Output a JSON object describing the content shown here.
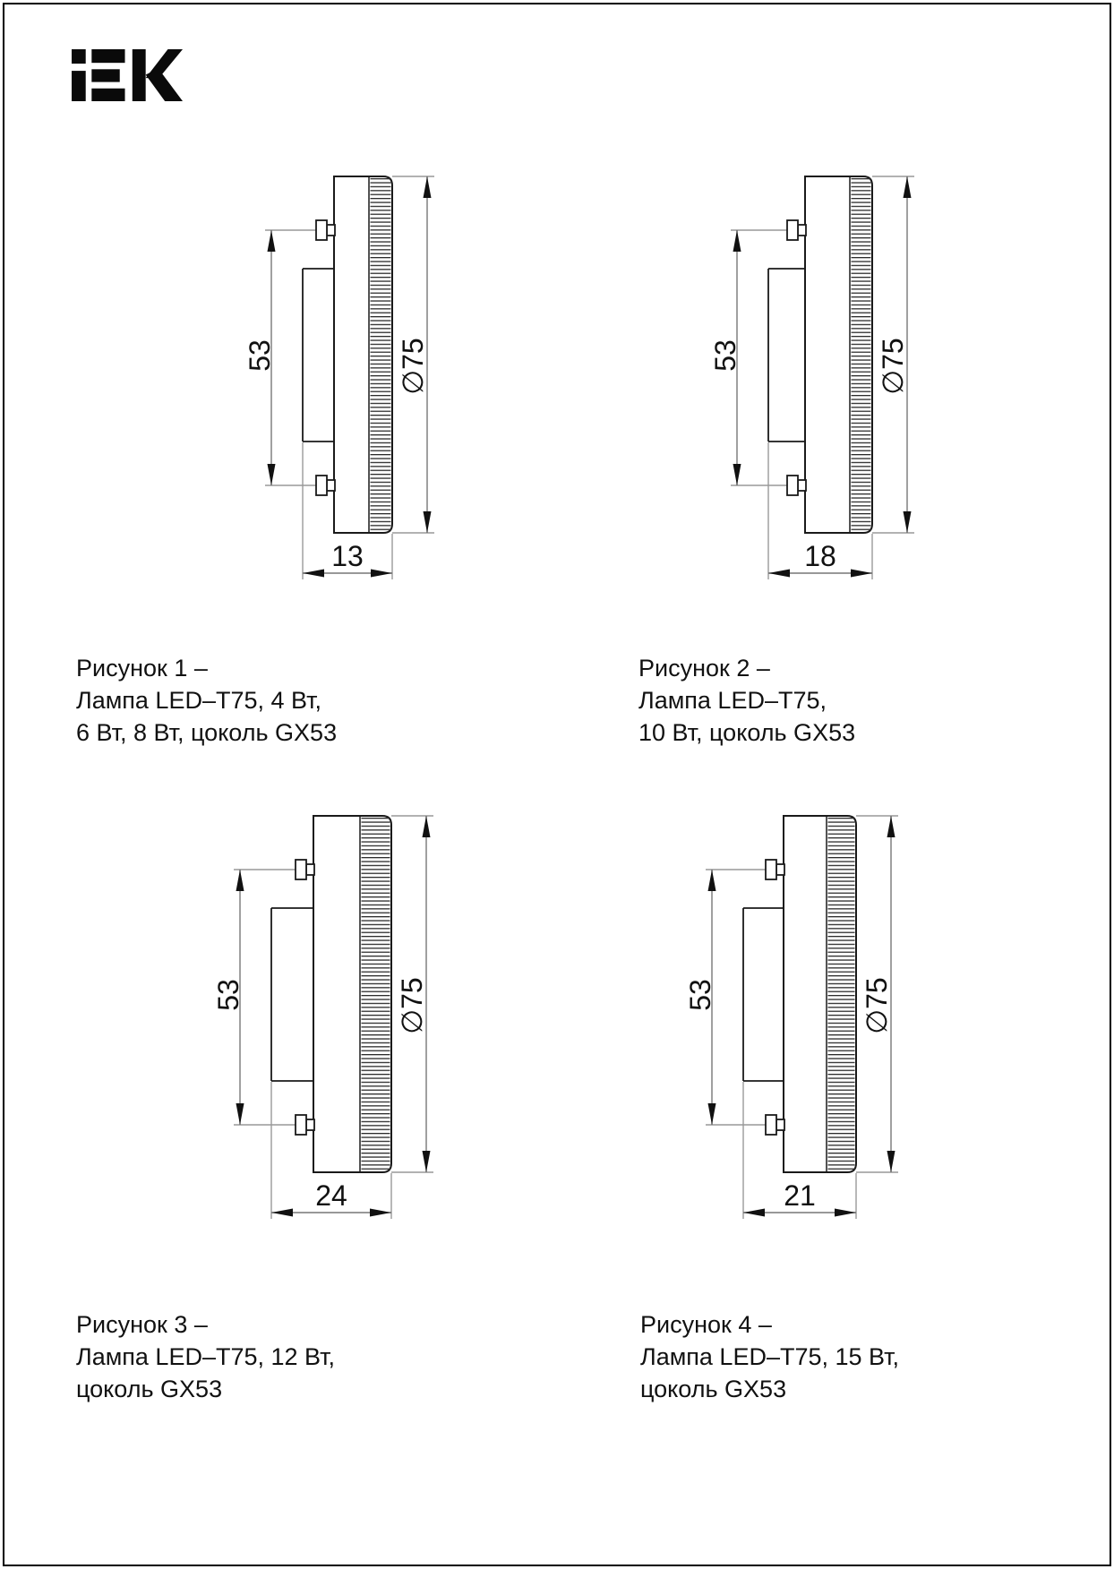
{
  "logo": {
    "text": "iEK"
  },
  "figures": [
    {
      "caption_lines": [
        "Рисунок 1 –",
        "Лампа LED–T75, 4 Вт,",
        "6 Вт, 8 Вт, цоколь GX53"
      ],
      "dims": {
        "pin_spacing": "53",
        "diameter": "∅75",
        "thickness": "13"
      }
    },
    {
      "caption_lines": [
        "Рисунок 2 –",
        "Лампа LED–T75,",
        "10 Вт, цоколь GX53"
      ],
      "dims": {
        "pin_spacing": "53",
        "diameter": "∅75",
        "thickness": "18"
      }
    },
    {
      "caption_lines": [
        "Рисунок 3 –",
        "Лампа LED–T75, 12 Вт,",
        "цоколь GX53"
      ],
      "dims": {
        "pin_spacing": "53",
        "diameter": "∅75",
        "thickness": "24"
      }
    },
    {
      "caption_lines": [
        "Рисунок 4 –",
        "Лампа LED–T75, 15 Вт,",
        "цоколь GX53"
      ],
      "dims": {
        "pin_spacing": "53",
        "diameter": "∅75",
        "thickness": "21"
      }
    }
  ]
}
